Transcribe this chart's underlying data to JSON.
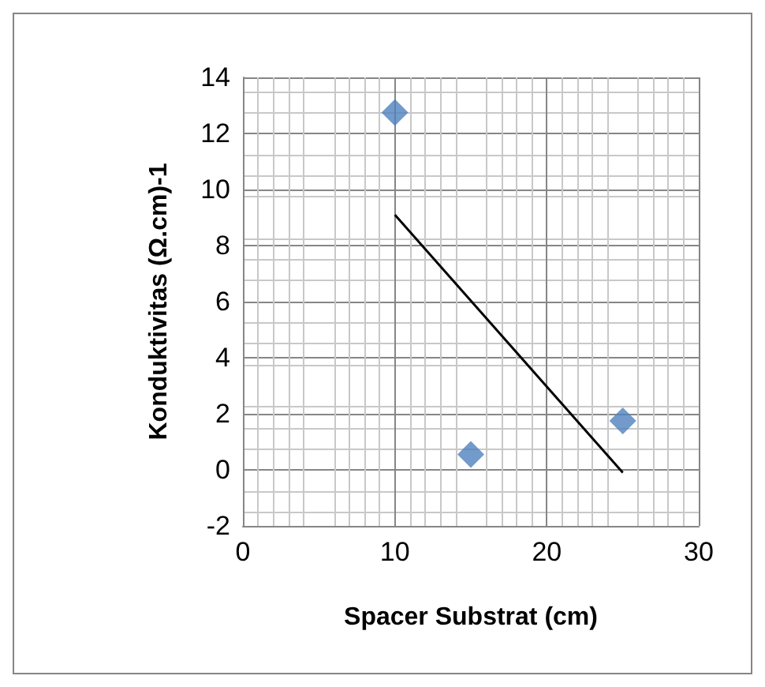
{
  "chart_data": {
    "type": "scatter",
    "xlabel": "Spacer Substrat (cm)",
    "ylabel": "Konduktivitas (Ω.cm)-1",
    "xlim": [
      0,
      30
    ],
    "xticks": [
      0,
      10,
      20,
      30
    ],
    "ylim": [
      -2,
      14
    ],
    "yticks": [
      -2,
      0,
      2,
      4,
      6,
      8,
      10,
      12,
      14
    ],
    "grid": true,
    "marker": "diamond",
    "series": [
      {
        "type": "scatter",
        "color": "#4f81bd",
        "x": [
          10,
          15,
          25
        ],
        "values": [
          12.75,
          0.55,
          1.75
        ]
      },
      {
        "type": "line",
        "color": "#000000",
        "x": [
          10,
          25
        ],
        "values": [
          9.1,
          -0.1
        ],
        "marker": "none"
      }
    ]
  }
}
